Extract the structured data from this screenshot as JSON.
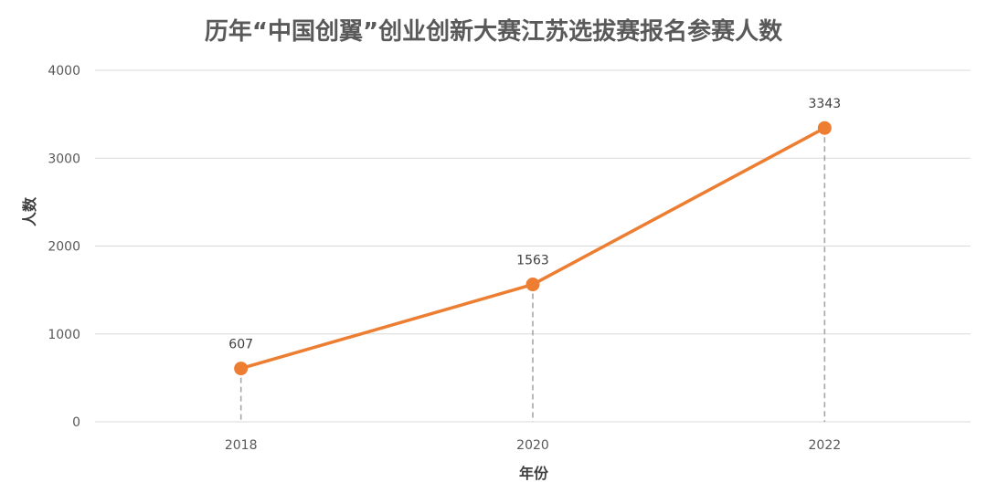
{
  "chart_data": {
    "type": "line",
    "title": "历年“中国创翼”创业创新大赛江苏选拔赛报名参赛人数",
    "xlabel": "年份",
    "ylabel": "人数",
    "categories": [
      "2018",
      "2020",
      "2022"
    ],
    "series": [
      {
        "values": [
          607,
          1563,
          3343
        ],
        "color": "#ED7D31"
      }
    ],
    "data_labels": [
      "607",
      "1563",
      "3343"
    ],
    "ylim": [
      0,
      4000
    ],
    "yticks": [
      0,
      1000,
      2000,
      3000,
      4000
    ],
    "ytick_labels": [
      "0",
      "1000",
      "2000",
      "3000",
      "4000"
    ],
    "grid": true,
    "drop_lines": true,
    "legend": "none",
    "colors": {
      "line": "#ED7D31",
      "grid": "#D9D9D9",
      "drop_line": "#A6A6A6",
      "text": "#595959"
    }
  }
}
